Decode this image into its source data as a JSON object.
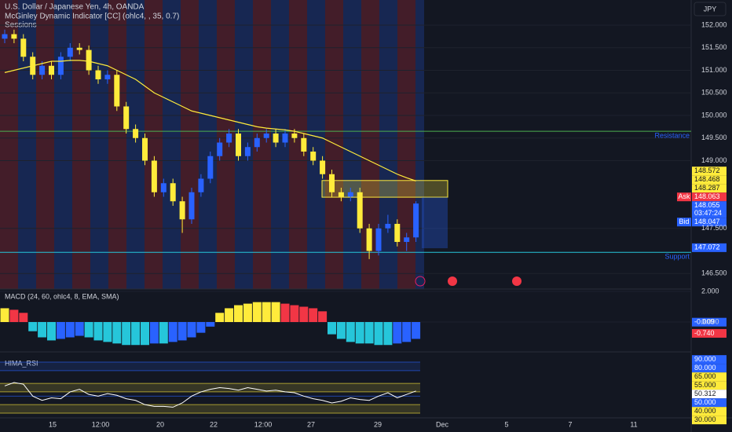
{
  "header": {
    "symbol": "U.S. Dollar / Japanese Yen, 4h, OANDA",
    "indicator": "McGinley Dynamic Indicator [CC] (ohlc4, , 35, 0.7)",
    "sessions": "Sessions"
  },
  "currency": "JPY",
  "chart_data": {
    "type": "candlestick",
    "yticks": [
      {
        "value": 152,
        "label": "152.000"
      },
      {
        "value": 151.5,
        "label": "151.500"
      },
      {
        "value": 151,
        "label": "151.000"
      },
      {
        "value": 150.5,
        "label": "150.500"
      },
      {
        "value": 150,
        "label": "150.000"
      },
      {
        "value": 149.5,
        "label": "149.500"
      },
      {
        "value": 149,
        "label": "149.000"
      },
      {
        "value": 147.5,
        "label": "147.500"
      },
      {
        "value": 146.5,
        "label": "146.500"
      }
    ],
    "xticks": [
      "15",
      "12:00",
      "20",
      "22",
      "12:00",
      "27",
      "29",
      "Dec",
      "5",
      "7",
      "11"
    ],
    "up_color": "#2962ff",
    "down_color": "#ffeb3b",
    "candles": [
      [
        151.7,
        151.9,
        151.6,
        151.8
      ],
      [
        151.8,
        151.9,
        151.6,
        151.7
      ],
      [
        151.7,
        151.8,
        151.2,
        151.3
      ],
      [
        151.3,
        151.4,
        150.8,
        150.9
      ],
      [
        150.9,
        151.2,
        150.8,
        151.1
      ],
      [
        151.1,
        151.2,
        150.8,
        150.9
      ],
      [
        150.9,
        151.4,
        150.8,
        151.3
      ],
      [
        151.3,
        151.6,
        151.2,
        151.5
      ],
      [
        151.5,
        151.6,
        151.35,
        151.45
      ],
      [
        151.45,
        151.55,
        150.9,
        151.0
      ],
      [
        151.0,
        151.1,
        150.7,
        150.8
      ],
      [
        150.8,
        151.0,
        150.7,
        150.9
      ],
      [
        150.9,
        151.0,
        150.1,
        150.2
      ],
      [
        150.2,
        150.3,
        149.6,
        149.7
      ],
      [
        149.7,
        149.8,
        149.4,
        149.5
      ],
      [
        149.5,
        149.6,
        148.9,
        149.0
      ],
      [
        149.0,
        149.1,
        148.2,
        148.3
      ],
      [
        148.3,
        148.6,
        148.2,
        148.5
      ],
      [
        148.5,
        148.6,
        148.0,
        148.1
      ],
      [
        148.1,
        148.2,
        147.4,
        147.7
      ],
      [
        147.7,
        148.4,
        147.6,
        148.3
      ],
      [
        148.3,
        148.7,
        148.2,
        148.6
      ],
      [
        148.6,
        149.2,
        148.5,
        149.1
      ],
      [
        149.1,
        149.5,
        149.0,
        149.4
      ],
      [
        149.4,
        149.7,
        149.3,
        149.6
      ],
      [
        149.6,
        149.7,
        149.0,
        149.1
      ],
      [
        149.1,
        149.4,
        149.0,
        149.3
      ],
      [
        149.3,
        149.6,
        149.2,
        149.5
      ],
      [
        149.5,
        149.7,
        149.4,
        149.6
      ],
      [
        149.6,
        149.7,
        149.3,
        149.4
      ],
      [
        149.4,
        149.7,
        149.3,
        149.6
      ],
      [
        149.6,
        149.7,
        149.4,
        149.5
      ],
      [
        149.5,
        149.6,
        149.1,
        149.2
      ],
      [
        149.2,
        149.3,
        148.9,
        149.0
      ],
      [
        149.0,
        149.1,
        148.6,
        148.7
      ],
      [
        148.7,
        148.8,
        148.2,
        148.3
      ],
      [
        148.3,
        148.4,
        148.1,
        148.2
      ],
      [
        148.2,
        148.4,
        148.1,
        148.3
      ],
      [
        148.3,
        148.4,
        147.4,
        147.5
      ],
      [
        147.5,
        147.6,
        146.82,
        147.0
      ],
      [
        147.0,
        147.6,
        146.9,
        147.5
      ],
      [
        147.5,
        147.8,
        147.4,
        147.6
      ],
      [
        147.6,
        147.7,
        147.1,
        147.2
      ],
      [
        147.2,
        147.4,
        147.0,
        147.3
      ],
      [
        147.3,
        148.1,
        147.2,
        148.05
      ]
    ],
    "mcginley": {
      "color": "#ffeb3b",
      "values": [
        150.95,
        151.0,
        151.05,
        151.1,
        151.15,
        151.2,
        151.2,
        151.22,
        151.22,
        151.2,
        151.15,
        151.1,
        151.0,
        150.9,
        150.8,
        150.65,
        150.5,
        150.4,
        150.3,
        150.2,
        150.1,
        150.05,
        150.0,
        149.95,
        149.9,
        149.85,
        149.8,
        149.75,
        149.72,
        149.7,
        149.68,
        149.65,
        149.6,
        149.55,
        149.5,
        149.4,
        149.3,
        149.2,
        149.1,
        149.0,
        148.9,
        148.8,
        148.7,
        148.62,
        148.55
      ]
    },
    "resistance": {
      "label": "Resistance",
      "value": 149.65,
      "color": "#4caf50"
    },
    "support": {
      "label": "Support",
      "value": 146.97,
      "color": "#26c6da"
    },
    "zone": {
      "top": 148.56,
      "bottom": 148.19,
      "color": "#ffeb3b"
    },
    "position": {
      "top": 148.19,
      "bottom": 147.06,
      "color": "#2962ff"
    },
    "badges": [
      {
        "label": "148.572",
        "value": 148.572,
        "color": "#ffeb3b"
      },
      {
        "label": "148.468",
        "value": 148.468,
        "color": "#ffeb3b"
      },
      {
        "label": "148.287",
        "value": 148.287,
        "color": "#ffeb3b"
      },
      {
        "tag": "Ask",
        "label": "148.063",
        "value": 148.063,
        "color": "#f23645"
      },
      {
        "label": "148.055",
        "value": 148.055,
        "sub": "03:47:24",
        "color": "#2962ff"
      },
      {
        "tag": "Bid",
        "label": "148.047",
        "value": 148.047,
        "color": "#2962ff"
      },
      {
        "label": "147.072",
        "value": 147.072,
        "color": "#2962ff"
      }
    ],
    "macd": {
      "title": "MACD (24, 60, ohlc4, 8, EMA, SMA)",
      "yticks": [
        {
          "value": 2,
          "label": "2.000"
        },
        {
          "value": 0,
          "label": "0.000"
        }
      ],
      "colors": {
        "pos_up": "#ffeb3b",
        "pos_down": "#f23645",
        "neg_down": "#26c6da",
        "neg_up": "#2962ff"
      },
      "values": [
        0.9,
        0.8,
        0.6,
        -0.6,
        -1.0,
        -1.2,
        -1.1,
        -1.0,
        -0.9,
        -1.0,
        -1.2,
        -1.3,
        -1.4,
        -1.5,
        -1.5,
        -1.5,
        -1.4,
        -1.4,
        -1.3,
        -1.2,
        -1.0,
        -0.7,
        -0.3,
        0.6,
        0.9,
        1.1,
        1.2,
        1.3,
        1.3,
        1.3,
        1.2,
        1.1,
        1.0,
        0.9,
        0.7,
        -0.8,
        -1.1,
        -1.3,
        -1.4,
        -1.4,
        -1.5,
        -1.5,
        -1.4,
        -1.3,
        -1.1
      ],
      "badges": [
        {
          "label": "-0.009",
          "value": -0.009,
          "color": "#2962ff"
        },
        {
          "label": "-0.740",
          "value": -0.74,
          "color": "#f23645"
        }
      ]
    },
    "rsi": {
      "title": "HIMA_RSI",
      "color": "#ffffff",
      "values": [
        62,
        66,
        64,
        50,
        45,
        48,
        47,
        55,
        58,
        52,
        50,
        53,
        51,
        47,
        45,
        40,
        38,
        38,
        37,
        42,
        50,
        55,
        58,
        60,
        59,
        57,
        60,
        58,
        56,
        57,
        55,
        54,
        50,
        47,
        45,
        42,
        44,
        48,
        46,
        45,
        50,
        54,
        48,
        52,
        56
      ],
      "badges": [
        {
          "label": "90.000",
          "value": 90,
          "color": "#2962ff"
        },
        {
          "label": "80.000",
          "value": 80,
          "color": "#2962ff"
        },
        {
          "label": "65.000",
          "value": 65,
          "color": "#ffeb3b"
        },
        {
          "label": "55.000",
          "value": 55,
          "color": "#ffeb3b"
        },
        {
          "label": "50.312",
          "value": 50.312,
          "color": "#ffffff"
        },
        {
          "label": "50.000",
          "value": 50,
          "color": "#2962ff"
        },
        {
          "label": "40.000",
          "value": 40,
          "color": "#ffeb3b"
        },
        {
          "label": "30.000",
          "value": 30,
          "color": "#ffeb3b"
        }
      ]
    }
  }
}
